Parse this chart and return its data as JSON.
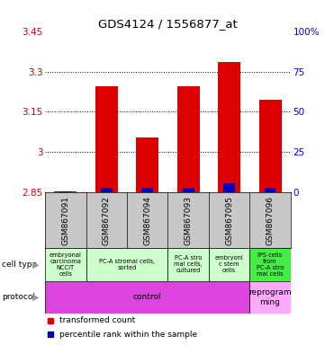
{
  "title": "GDS4124 / 1556877_at",
  "samples": [
    "GSM867091",
    "GSM867092",
    "GSM867094",
    "GSM867093",
    "GSM867095",
    "GSM867096"
  ],
  "transformed_counts": [
    2.856,
    3.245,
    3.055,
    3.245,
    3.335,
    3.195
  ],
  "percentile_ranks": [
    1,
    3,
    3,
    3,
    6,
    3
  ],
  "ylim_left": [
    2.85,
    3.45
  ],
  "ylim_right": [
    0,
    100
  ],
  "yticks_left": [
    2.85,
    3.0,
    3.15,
    3.3,
    3.45
  ],
  "yticks_right": [
    0,
    25,
    50,
    75,
    100
  ],
  "ytick_labels_left": [
    "2.85",
    "3",
    "3.15",
    "3.3",
    "3.45"
  ],
  "ytick_labels_right": [
    "0",
    "25",
    "50",
    "75",
    "100%"
  ],
  "dotted_lines": [
    3.0,
    3.15,
    3.3
  ],
  "bar_color": "#dd0000",
  "percentile_color": "#0000bb",
  "bar_width": 0.55,
  "pct_bar_width": 0.28,
  "cell_type_data": [
    [
      0,
      1,
      "#ccffcc",
      "embryonal\ncarcinoma\nNCCIT\ncells"
    ],
    [
      1,
      3,
      "#ccffcc",
      "PC-A stromal cells,\nsorted"
    ],
    [
      3,
      4,
      "#ccffcc",
      "PC-A stro\nmal cells,\ncultured"
    ],
    [
      4,
      5,
      "#ccffcc",
      "embryoni\nc stem\ncells"
    ],
    [
      5,
      6,
      "#44ee44",
      "IPS cells\nfrom\nPC-A stro\nmal cells"
    ]
  ],
  "protocol_data": [
    [
      0,
      5,
      "#dd44dd",
      "control"
    ],
    [
      5,
      6,
      "#ffaaff",
      "reprogram\nming"
    ]
  ],
  "label_bg": "#c8c8c8",
  "left_label_color": "#cc0000",
  "right_label_color": "#0000cc"
}
